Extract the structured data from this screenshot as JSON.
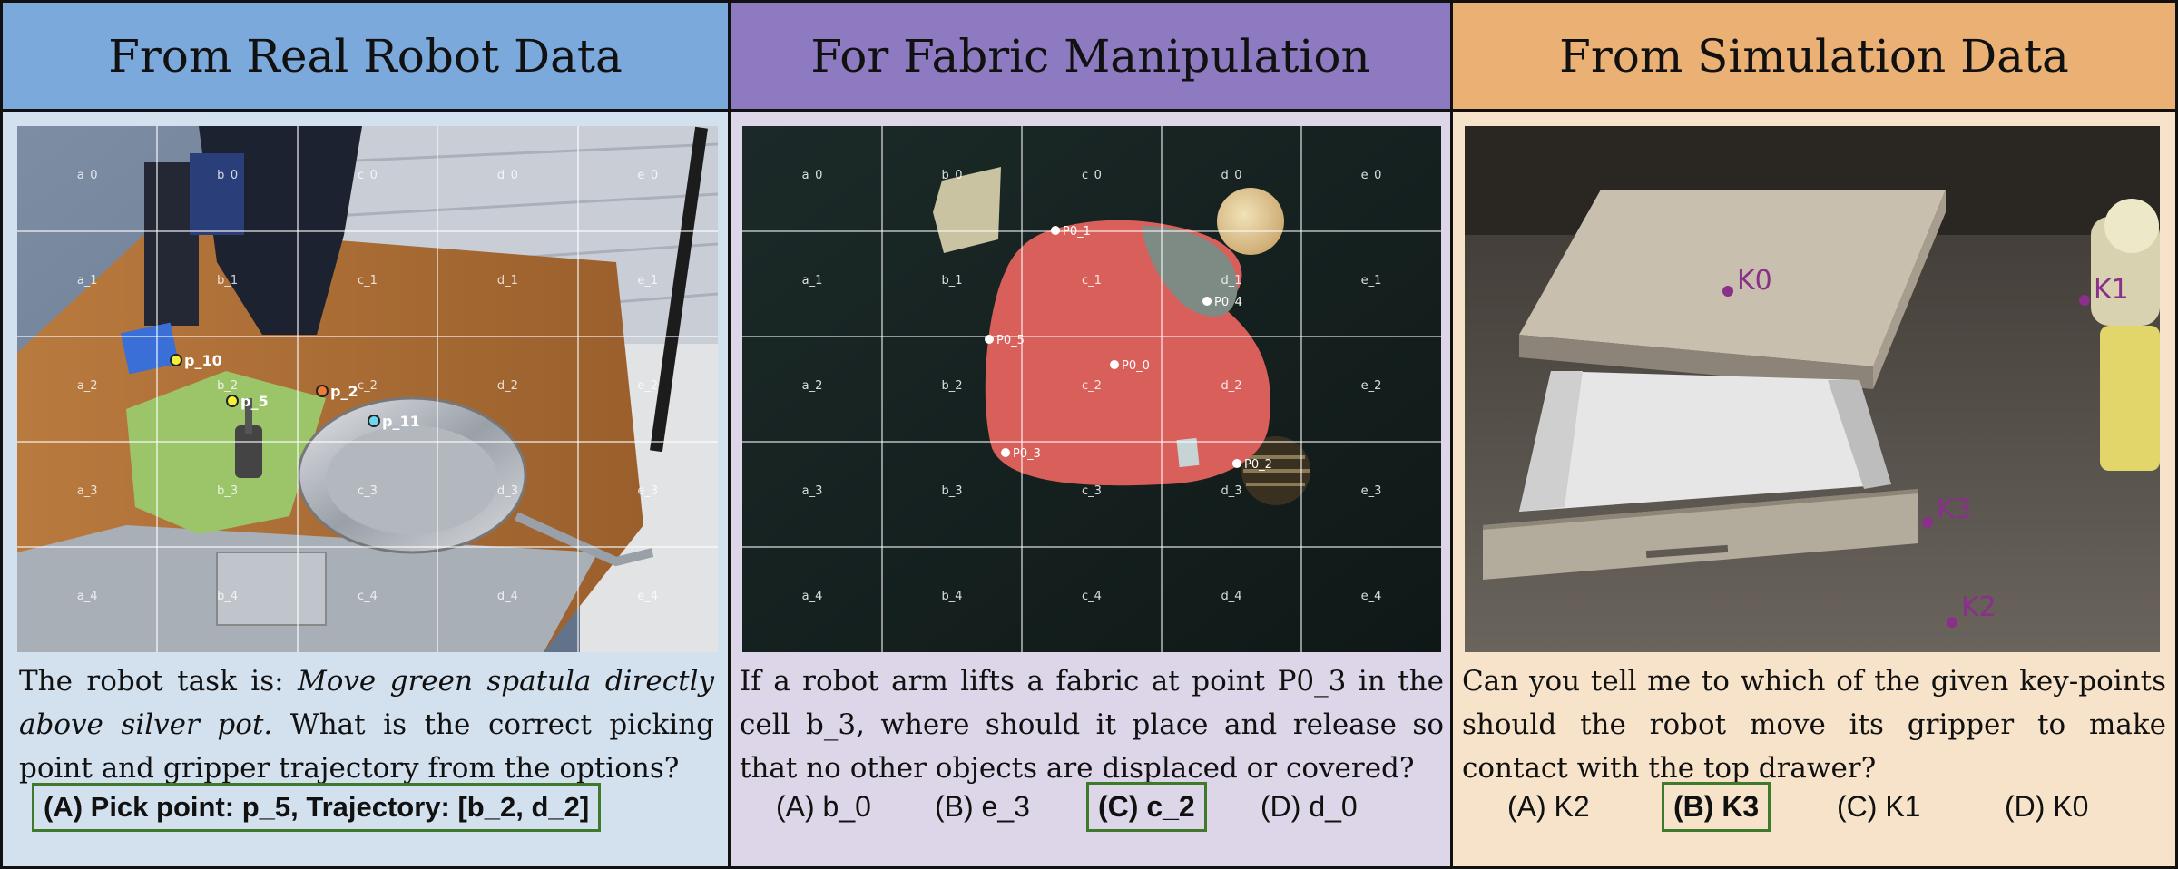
{
  "panels": [
    {
      "title": "From Real Robot Data",
      "question_prefix": "The robot task is: ",
      "question_task": "Move green spatula directly above silver pot.",
      "question_suffix": " What is the correct picking point and gripper trajectory from the options?",
      "answer": "(A) Pick point: p_5, Trajectory: [b_2, d_2]",
      "grid_labels": [
        "a_0",
        "b_0",
        "c_0",
        "d_0",
        "e_0",
        "a_1",
        "b_1",
        "c_1",
        "d_1",
        "e_1",
        "a_2",
        "b_2",
        "c_2",
        "d_2",
        "e_2",
        "a_3",
        "b_3",
        "c_3",
        "d_3",
        "e_3",
        "a_4",
        "b_4",
        "c_4",
        "d_4",
        "e_4"
      ],
      "points": [
        {
          "label": "p_10",
          "color": "#f2f03a"
        },
        {
          "label": "p_5",
          "color": "#f2f03a"
        },
        {
          "label": "p_2",
          "color": "#ef7a3a"
        },
        {
          "label": "p_11",
          "color": "#6fd6f0"
        }
      ]
    },
    {
      "title": "For Fabric Manipulation",
      "question": "If a robot arm lifts a fabric at point P0_3 in the cell b_3, where should it place and release so that no other objects are displaced or covered?",
      "options": [
        "(A) b_0",
        "(B) e_3",
        "(C) c_2",
        "(D) d_0"
      ],
      "correct_option": "(C) c_2",
      "grid_labels": [
        "a_0",
        "b_0",
        "c_0",
        "d_0",
        "e_0",
        "a_1",
        "b_1",
        "c_1",
        "d_1",
        "e_1",
        "a_2",
        "b_2",
        "c_2",
        "d_2",
        "e_2",
        "a_3",
        "b_3",
        "c_3",
        "d_3",
        "e_3",
        "a_4",
        "b_4",
        "c_4",
        "d_4",
        "e_4"
      ],
      "points": [
        "P0_1",
        "P0_4",
        "P0_5",
        "P0_0",
        "P0_3",
        "P0_2"
      ]
    },
    {
      "title": "From Simulation Data",
      "question": "Can you tell me to which of the given key-points should the robot move its gripper to make contact with the top drawer?",
      "options": [
        "(A) K2",
        "(B) K3",
        "(C) K1",
        "(D) K0"
      ],
      "correct_option": "(B) K3",
      "keypoints": [
        "K0",
        "K1",
        "K3",
        "K2"
      ],
      "keypoint_color": "#8a2f8a"
    }
  ]
}
